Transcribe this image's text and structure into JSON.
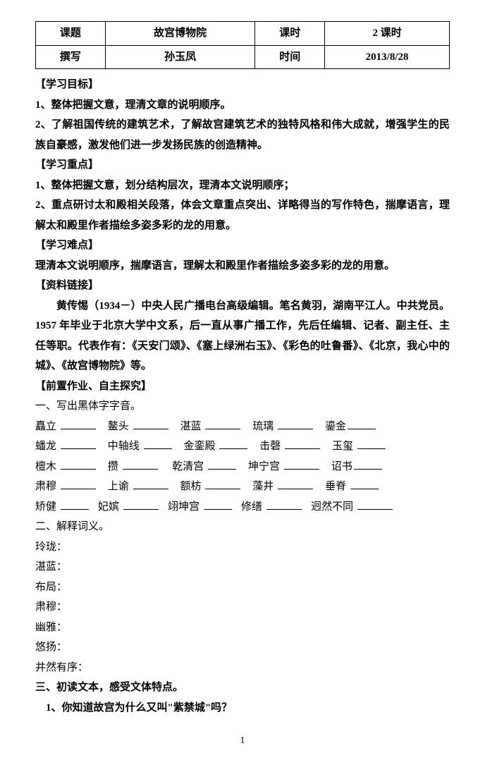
{
  "table": {
    "r1c1": "课题",
    "r1c2": "故宫博物院",
    "r1c3": "课时",
    "r1c4": "2 课时",
    "r2c1": "撰写",
    "r2c2": "孙玉凤",
    "r2c3": "时间",
    "r2c4": "2013/8/28"
  },
  "sections": {
    "goal_title": "【学习目标】",
    "goal_1": "1、整体把握文意，理清文章的说明顺序。",
    "goal_2": "2、了解祖国传统的建筑艺术，了解故宫建筑艺术的独特风格和伟大成就，增强学生的民族自豪感，激发他们进一步发扬民族的创造精神。",
    "focus_title": "【学习重点】",
    "focus_1": "1、整体把握文意，划分结构层次，理清本文说明顺序；",
    "focus_2": "2、重点研讨太和殿相关段落，体会文章重点突出、详略得当的写作特色，揣摩语言，理解太和殿里作者描绘多姿多彩的龙的用意。",
    "diff_title": "【学习难点】",
    "diff_1": "理清本文说明顺序，揣摩语言，理解太和殿里作者描绘多姿多彩的龙的用意。",
    "res_title": "【资料链接】",
    "res_para": "黄传惕（1934－）中央人民广播电台高级编辑。笔名黄羽，湖南平江人。中共党员。1957 年毕业于北京大学中文系，后一直从事广播工作，先后任编辑、记者、副主任、主任等职。代表作有：《天安门颂》、《塞上绿洲右玉》、《彩色的吐鲁番》、《北京，我心中的城》、《故宫博物院》等。",
    "pre_title": "【前置作业、自主探究】",
    "q1": "一、写出黑体字字音。",
    "q2": "二、解释词义。",
    "q3": "三、初读文本，感受文体特点。",
    "q3_1": "1、你知道故宫为什么又叫\"紫禁城\"吗？"
  },
  "vocab": {
    "r1": [
      "矗立",
      "鳌头",
      "湛蓝",
      "琉璃",
      "鎏金"
    ],
    "r2": [
      "蟠龙",
      "中轴线",
      "金銮殿",
      "击磬",
      "玉玺"
    ],
    "r3": [
      "檀木",
      "攒",
      "乾清宫",
      "坤宁宫",
      "诏书"
    ],
    "r4": [
      "肃穆",
      "上谕",
      "额枋",
      "藻井",
      "垂脊"
    ],
    "r5": [
      "矫健",
      "妃嫔",
      "翊坤宫",
      "修缮",
      "迥然不同"
    ]
  },
  "defs": [
    "玲珑：",
    "湛蓝：",
    "布局：",
    "肃穆：",
    "幽雅：",
    "悠扬：",
    "井然有序："
  ],
  "page_num": "1"
}
